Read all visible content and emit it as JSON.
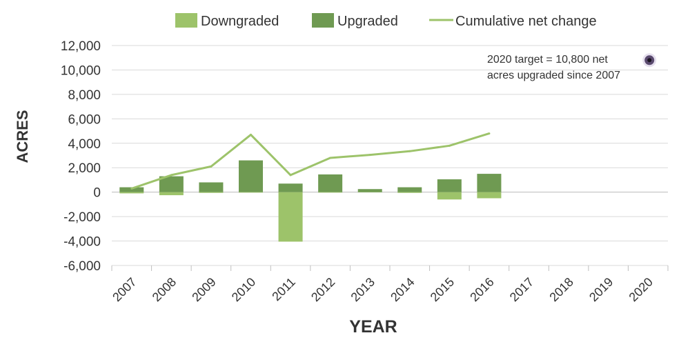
{
  "chart_data": {
    "type": "bar",
    "categories": [
      "2007",
      "2008",
      "2009",
      "2010",
      "2011",
      "2012",
      "2013",
      "2014",
      "2015",
      "2016",
      "2017",
      "2018",
      "2019",
      "2020"
    ],
    "series": [
      {
        "name": "Downgraded",
        "kind": "bar",
        "color": "#9dc36a",
        "values": [
          -100,
          -250,
          -60,
          -40,
          -4050,
          -40,
          -20,
          -60,
          -600,
          -500,
          null,
          null,
          null,
          null
        ]
      },
      {
        "name": "Upgraded",
        "kind": "bar",
        "color": "#6f9a52",
        "values": [
          400,
          1300,
          800,
          2600,
          700,
          1450,
          250,
          400,
          1050,
          1500,
          null,
          null,
          null,
          null
        ]
      },
      {
        "name": "Cumulative net change",
        "kind": "line",
        "color": "#9dc36a",
        "values": [
          300,
          1400,
          2100,
          4700,
          1400,
          2800,
          3050,
          3350,
          3800,
          4800,
          null,
          null,
          null,
          null
        ]
      }
    ],
    "target": {
      "year": "2020",
      "value": 10800,
      "color": "#5a4a6e"
    },
    "title": "",
    "xlabel": "YEAR",
    "ylabel": "ACRES",
    "ylim": [
      -6000,
      12000
    ],
    "yticks": [
      12000,
      10000,
      8000,
      6000,
      4000,
      2000,
      0,
      -2000,
      -4000,
      -6000
    ],
    "ytick_labels": [
      "12,000",
      "10,000",
      "8,000",
      "6,000",
      "4,000",
      "2,000",
      "0",
      "-2,000",
      "-4,000",
      "-6,000"
    ],
    "grid": true,
    "legend_position": "top",
    "annotation": [
      "2020 target = 10,800 net",
      "acres upgraded since 2007"
    ]
  }
}
